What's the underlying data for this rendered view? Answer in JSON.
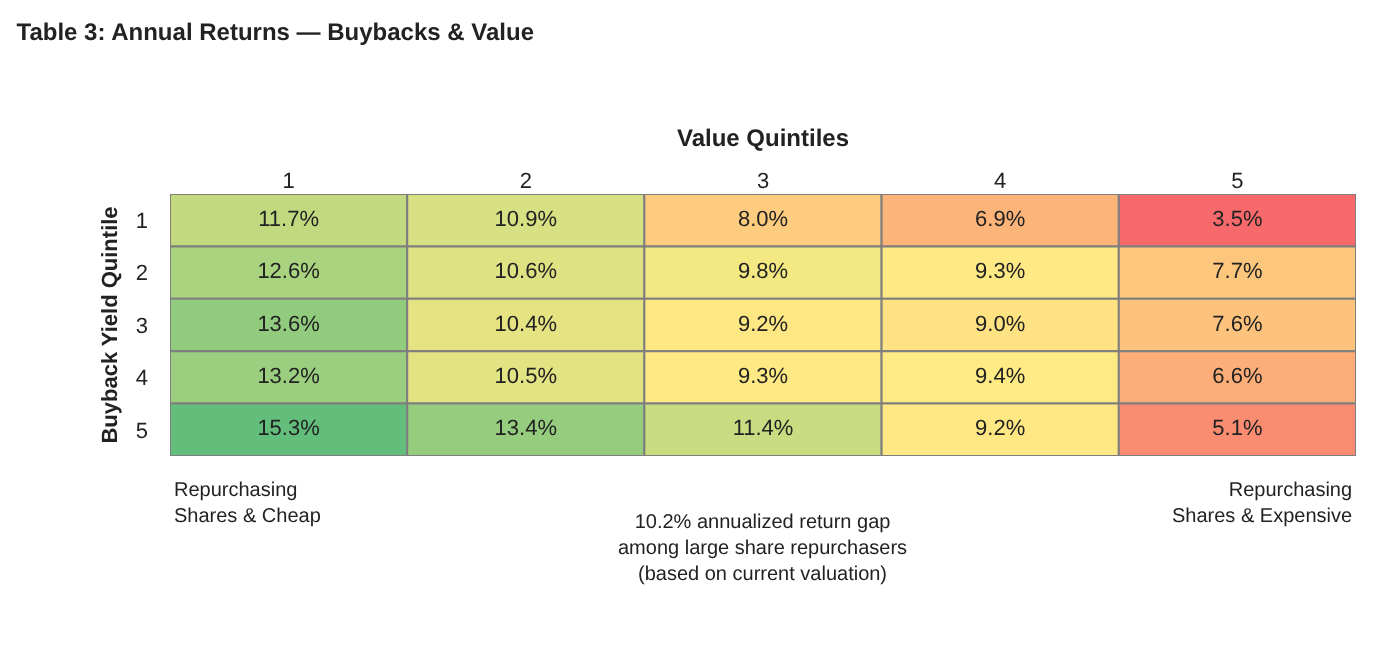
{
  "chart_data": {
    "type": "heatmap",
    "title": "Table 3: Annual Returns — Buybacks & Value",
    "xlabel": "Value Quintiles",
    "ylabel": "Buyback Yield Quintile",
    "categories": [
      "1",
      "2",
      "3",
      "4",
      "5"
    ],
    "y_categories": [
      "1",
      "2",
      "3",
      "4",
      "5"
    ],
    "cells": [
      [
        11.7,
        10.9,
        8.0,
        6.9,
        3.5
      ],
      [
        12.6,
        10.6,
        9.8,
        9.3,
        7.7
      ],
      [
        13.6,
        10.4,
        9.2,
        9.0,
        7.6
      ],
      [
        13.2,
        10.5,
        9.3,
        9.4,
        6.6
      ],
      [
        15.3,
        13.4,
        11.4,
        9.2,
        5.1
      ]
    ],
    "cell_labels": [
      [
        "11.7%",
        "10.9%",
        "8.0%",
        "6.9%",
        "3.5%"
      ],
      [
        "12.6%",
        "10.6%",
        "9.8%",
        "9.3%",
        "7.7%"
      ],
      [
        "13.6%",
        "10.4%",
        "9.2%",
        "9.0%",
        "7.6%"
      ],
      [
        "13.2%",
        "10.5%",
        "9.3%",
        "9.4%",
        "6.6%"
      ],
      [
        "15.3%",
        "13.4%",
        "11.4%",
        "9.2%",
        "5.1%"
      ]
    ],
    "annotations": [
      "Repurchasing Shares & Cheap",
      "10.2% annualized return gap among large share repurchasers (based on current valuation)",
      "Repurchasing Shares & Expensive"
    ]
  }
}
